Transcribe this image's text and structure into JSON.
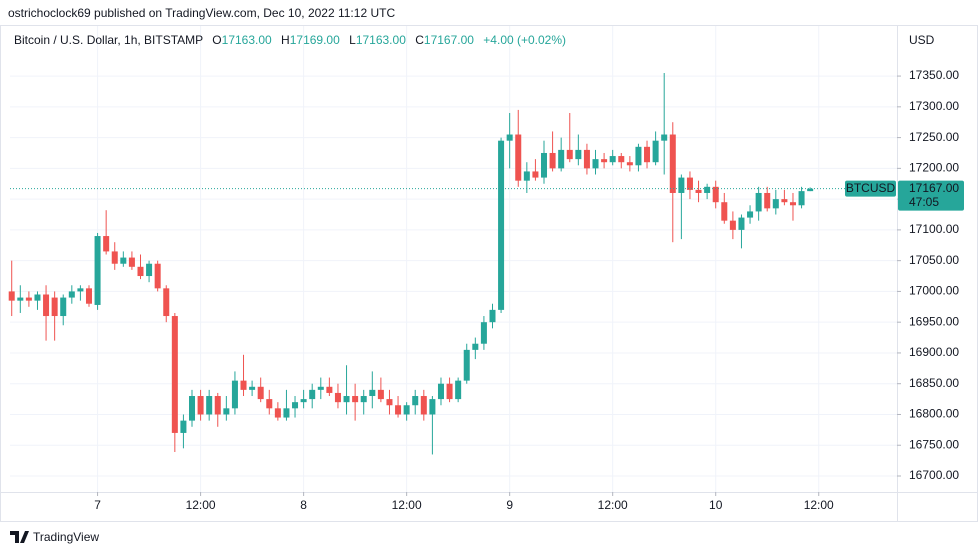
{
  "chart_data": {
    "type": "candlestick",
    "publisher_line": "ostrichoclock69 published on TradingView.com, Dec 10, 2022 11:12 UTC",
    "instrument": "Bitcoin / U.S. Dollar, 1h, BITSTAMP",
    "legend": {
      "o_key": "O",
      "o": "17163.00",
      "h_key": "H",
      "h": "17169.00",
      "l_key": "L",
      "l": "17163.00",
      "c_key": "C",
      "c": "17167.00",
      "change": "+4.00 (+0.02%)"
    },
    "currency": "USD",
    "watermark": "TradingView",
    "up_color": "#26a69a",
    "down_color": "#ef5350",
    "open": [
      17000,
      16985,
      16990,
      16985,
      16995,
      16990,
      16960,
      16990,
      17000,
      17005,
      16978,
      17090,
      17065,
      17045,
      17055,
      17040,
      17025,
      17045,
      17005,
      16960,
      16770,
      16790,
      16830,
      16800,
      16830,
      16800,
      16810,
      16855,
      16840,
      16845,
      16825,
      16810,
      16795,
      16810,
      16820,
      16825,
      16840,
      16845,
      16835,
      16820,
      16830,
      16820,
      16830,
      16840,
      16825,
      16815,
      16800,
      16815,
      16830,
      16800,
      16825,
      16850,
      16825,
      16855,
      16905,
      16915,
      16950,
      16970,
      17245,
      17255,
      17180,
      17195,
      17185,
      17225,
      17200,
      17230,
      17215,
      17230,
      17200,
      17215,
      17210,
      17220,
      17210,
      17205,
      17235,
      17210,
      17245,
      17255,
      17160,
      17185,
      17165,
      17160,
      17170,
      17145,
      17115,
      17100,
      17120,
      17130,
      17160,
      17135,
      17150,
      17145,
      17140,
      17163
    ],
    "high": [
      17050,
      17010,
      17000,
      17000,
      17010,
      17000,
      16995,
      17010,
      17010,
      17010,
      17095,
      17132,
      17080,
      17065,
      17065,
      17060,
      17050,
      17050,
      17010,
      16965,
      16800,
      16840,
      16840,
      16840,
      16835,
      16830,
      16870,
      16897,
      16855,
      16860,
      16840,
      16820,
      16840,
      16830,
      16840,
      16850,
      16860,
      16860,
      16850,
      16880,
      16850,
      16840,
      16870,
      16860,
      16840,
      16830,
      16820,
      16840,
      16840,
      16830,
      16860,
      16860,
      16860,
      16915,
      16925,
      16960,
      16980,
      17250,
      17290,
      17295,
      17210,
      17215,
      17245,
      17260,
      17250,
      17290,
      17255,
      17240,
      17230,
      17225,
      17230,
      17225,
      17220,
      17240,
      17245,
      17260,
      17355,
      17275,
      17190,
      17195,
      17180,
      17175,
      17180,
      17160,
      17130,
      17125,
      17140,
      17170,
      17170,
      17165,
      17165,
      17160,
      17170,
      17169
    ],
    "low": [
      16960,
      16965,
      16975,
      16970,
      16920,
      16920,
      16945,
      16980,
      16985,
      16975,
      16970,
      17060,
      17035,
      17040,
      17035,
      17020,
      17015,
      17000,
      16950,
      16739,
      16745,
      16780,
      16790,
      16790,
      16780,
      16790,
      16800,
      16830,
      16830,
      16820,
      16800,
      16790,
      16790,
      16795,
      16810,
      16810,
      16825,
      16830,
      16810,
      16800,
      16790,
      16800,
      16810,
      16820,
      16800,
      16795,
      16790,
      16800,
      16790,
      16735,
      16815,
      16820,
      16820,
      16850,
      16890,
      16905,
      16940,
      16965,
      17200,
      17170,
      17160,
      17180,
      17175,
      17195,
      17195,
      17210,
      17205,
      17190,
      17190,
      17200,
      17205,
      17200,
      17195,
      17195,
      17200,
      17205,
      17190,
      17080,
      17085,
      17150,
      17145,
      17150,
      17135,
      17110,
      17085,
      17070,
      17110,
      17115,
      17130,
      17125,
      17140,
      17115,
      17135,
      17163
    ],
    "close": [
      16985,
      16990,
      16985,
      16995,
      16960,
      16960,
      16990,
      17000,
      17005,
      16980,
      17090,
      17065,
      17045,
      17055,
      17040,
      17025,
      17045,
      17005,
      16960,
      16770,
      16790,
      16830,
      16800,
      16830,
      16800,
      16810,
      16855,
      16840,
      16845,
      16825,
      16810,
      16795,
      16810,
      16820,
      16825,
      16840,
      16845,
      16835,
      16820,
      16830,
      16820,
      16830,
      16840,
      16825,
      16815,
      16800,
      16815,
      16830,
      16800,
      16825,
      16850,
      16825,
      16855,
      16905,
      16915,
      16950,
      16970,
      17245,
      17255,
      17180,
      17195,
      17185,
      17225,
      17200,
      17230,
      17215,
      17230,
      17200,
      17215,
      17210,
      17220,
      17210,
      17205,
      17235,
      17210,
      17245,
      17255,
      17160,
      17185,
      17165,
      17160,
      17170,
      17145,
      17115,
      17100,
      17120,
      17130,
      17160,
      17135,
      17150,
      17145,
      17140,
      17163,
      17167
    ],
    "xlim": [
      -0.2,
      103
    ],
    "xticks": [
      {
        "value": 10,
        "label": "7"
      },
      {
        "value": 22,
        "label": "12:00"
      },
      {
        "value": 34,
        "label": "8"
      },
      {
        "value": 46,
        "label": "12:00"
      },
      {
        "value": 58,
        "label": "9"
      },
      {
        "value": 70,
        "label": "12:00"
      },
      {
        "value": 82,
        "label": "10"
      },
      {
        "value": 94,
        "label": "12:00"
      }
    ],
    "ylim": [
      16674,
      17433
    ],
    "yticks": [
      {
        "value": 16700,
        "label": "16700.00"
      },
      {
        "value": 16750,
        "label": "16750.00"
      },
      {
        "value": 16800,
        "label": "16800.00"
      },
      {
        "value": 16850,
        "label": "16850.00"
      },
      {
        "value": 16900,
        "label": "16900.00"
      },
      {
        "value": 16950,
        "label": "16950.00"
      },
      {
        "value": 17000,
        "label": "17000.00"
      },
      {
        "value": 17050,
        "label": "17050.00"
      },
      {
        "value": 17100,
        "label": "17100.00"
      },
      {
        "value": 17150,
        "label": "17150.00"
      },
      {
        "value": 17200,
        "label": "17200.00"
      },
      {
        "value": 17250,
        "label": "17250.00"
      },
      {
        "value": 17300,
        "label": "17300.00"
      },
      {
        "value": 17350,
        "label": "17350.00"
      }
    ],
    "grid": true,
    "price_tag": {
      "symbol": "BTCUSD",
      "value": 17167,
      "label": "17167.00",
      "countdown": "47:05"
    }
  }
}
